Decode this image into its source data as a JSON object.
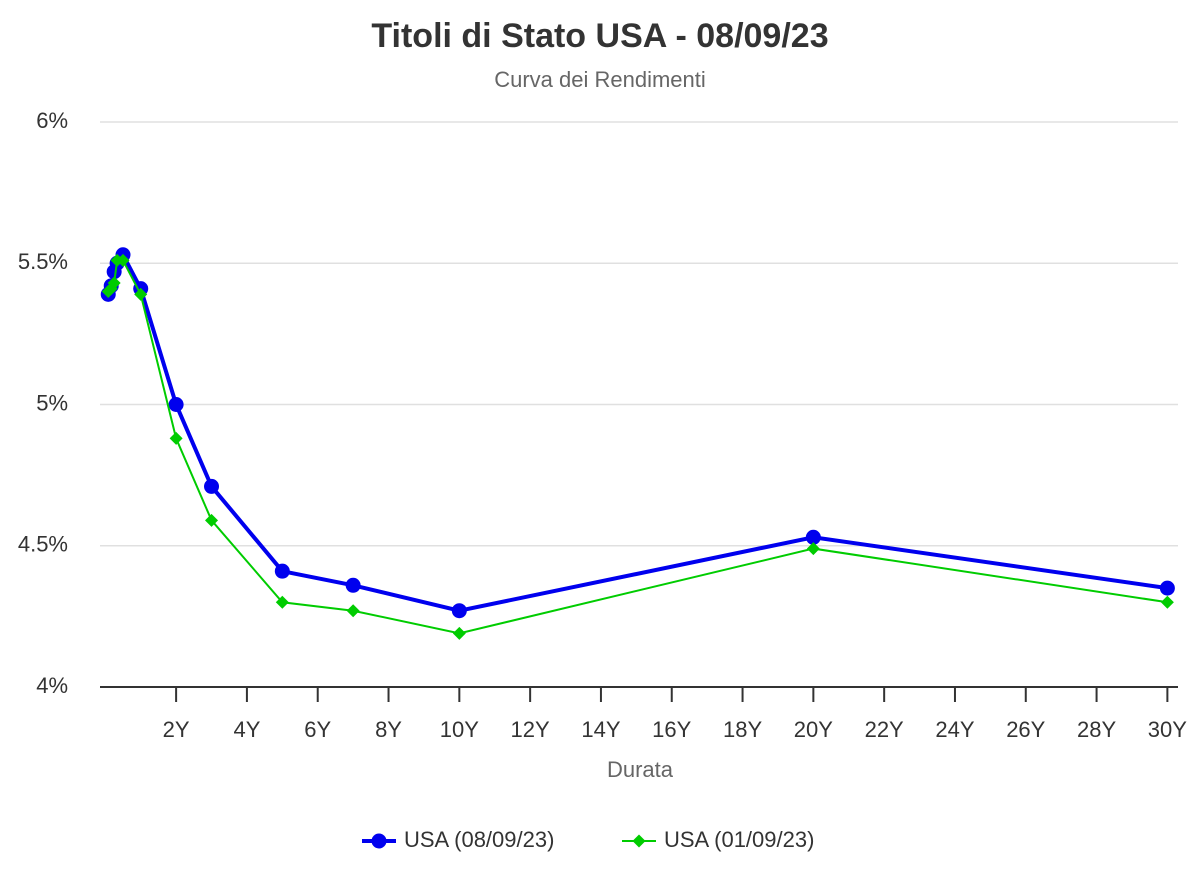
{
  "chart_data": {
    "type": "line",
    "title": "Titoli di Stato USA - 08/09/23",
    "subtitle": "Curva dei Rendimenti",
    "x_label": "Durata",
    "x": [
      0.083,
      0.167,
      0.25,
      0.333,
      0.5,
      1,
      2,
      3,
      5,
      7,
      10,
      20,
      30
    ],
    "series": [
      {
        "name": "USA (08/09/23)",
        "color": "#0000ee",
        "marker": "circle",
        "values": [
          5.39,
          5.42,
          5.47,
          5.5,
          5.53,
          5.41,
          5.0,
          4.71,
          4.41,
          4.36,
          4.27,
          4.53,
          4.35
        ]
      },
      {
        "name": "USA (01/09/23)",
        "color": "#00cc00",
        "marker": "diamond",
        "values": [
          5.4,
          5.41,
          5.43,
          5.51,
          5.51,
          5.39,
          4.88,
          4.59,
          4.3,
          4.27,
          4.19,
          4.49,
          4.3
        ]
      }
    ],
    "xlim": [
      -0.15,
      30.3
    ],
    "xticks": [
      {
        "value": 2,
        "label": "2Y"
      },
      {
        "value": 4,
        "label": "4Y"
      },
      {
        "value": 6,
        "label": "6Y"
      },
      {
        "value": 8,
        "label": "8Y"
      },
      {
        "value": 10,
        "label": "10Y"
      },
      {
        "value": 12,
        "label": "12Y"
      },
      {
        "value": 14,
        "label": "14Y"
      },
      {
        "value": 16,
        "label": "16Y"
      },
      {
        "value": 18,
        "label": "18Y"
      },
      {
        "value": 20,
        "label": "20Y"
      },
      {
        "value": 22,
        "label": "22Y"
      },
      {
        "value": 24,
        "label": "24Y"
      },
      {
        "value": 26,
        "label": "26Y"
      },
      {
        "value": 28,
        "label": "28Y"
      },
      {
        "value": 30,
        "label": "30Y"
      }
    ],
    "ylim": [
      4,
      6
    ],
    "yticks": [
      {
        "value": 4,
        "label": "4%"
      },
      {
        "value": 4.5,
        "label": "4.5%"
      },
      {
        "value": 5,
        "label": "5%"
      },
      {
        "value": 5.5,
        "label": "5.5%"
      },
      {
        "value": 6,
        "label": "6%"
      }
    ],
    "grid": true,
    "legend": "bottom"
  }
}
